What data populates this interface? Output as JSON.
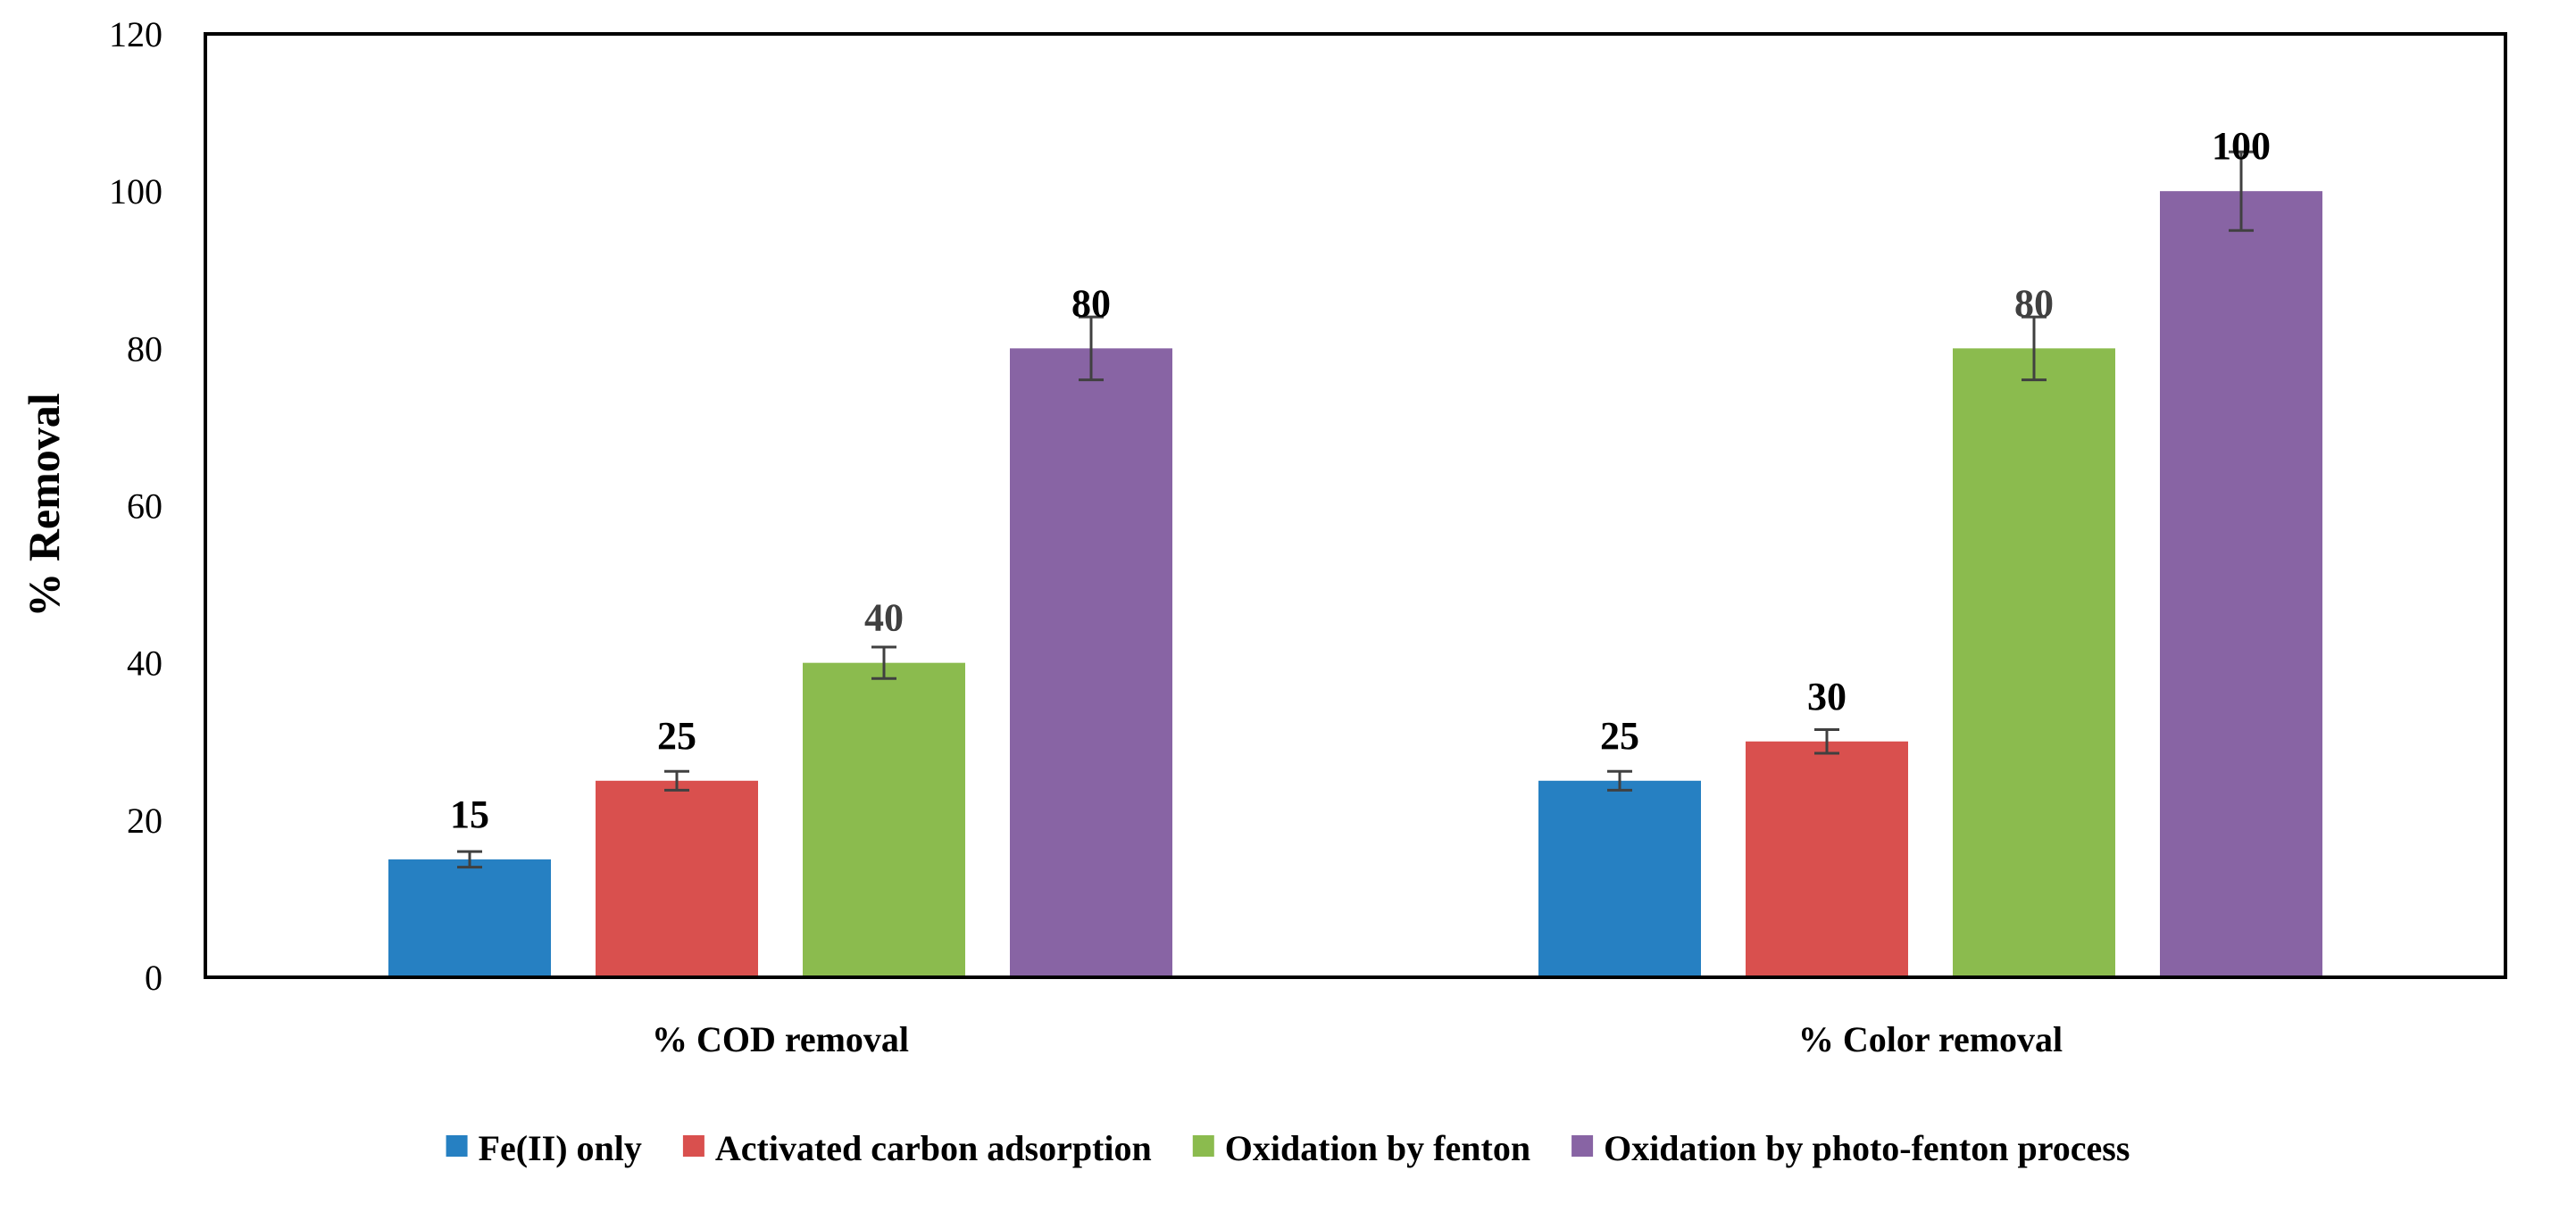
{
  "chart_data": {
    "type": "bar",
    "title": "",
    "xlabel": "",
    "ylabel": "% Removal",
    "ylim": [
      0,
      120
    ],
    "yticks": [
      0,
      20,
      40,
      60,
      80,
      100,
      120
    ],
    "categories": [
      "% COD removal",
      "% Color removal"
    ],
    "series": [
      {
        "name": "Fe(II) only",
        "color": "#2680C2",
        "values": [
          15,
          25
        ],
        "errors": [
          1,
          1.2
        ]
      },
      {
        "name": "Activated carbon adsorption",
        "color": "#D9504E",
        "values": [
          25,
          30
        ],
        "errors": [
          1.2,
          1.5
        ]
      },
      {
        "name": "Oxidation by fenton",
        "color": "#8BBB4E",
        "values": [
          40,
          80
        ],
        "errors": [
          2,
          4
        ]
      },
      {
        "name": "Oxidation by photo-fenton process",
        "color": "#8864A4",
        "values": [
          80,
          100
        ],
        "errors": [
          4,
          5
        ]
      }
    ],
    "data_labels": [
      [
        "15",
        "25"
      ],
      [
        "25",
        "30"
      ],
      [
        "40",
        "80"
      ],
      [
        "80",
        "100"
      ]
    ],
    "data_label_colors": [
      [
        "#000000",
        "#000000"
      ],
      [
        "#000000",
        "#000000"
      ],
      [
        "#404040",
        "#404040"
      ],
      [
        "#000000",
        "#000000"
      ]
    ],
    "legend_position": "bottom",
    "grid": false
  }
}
